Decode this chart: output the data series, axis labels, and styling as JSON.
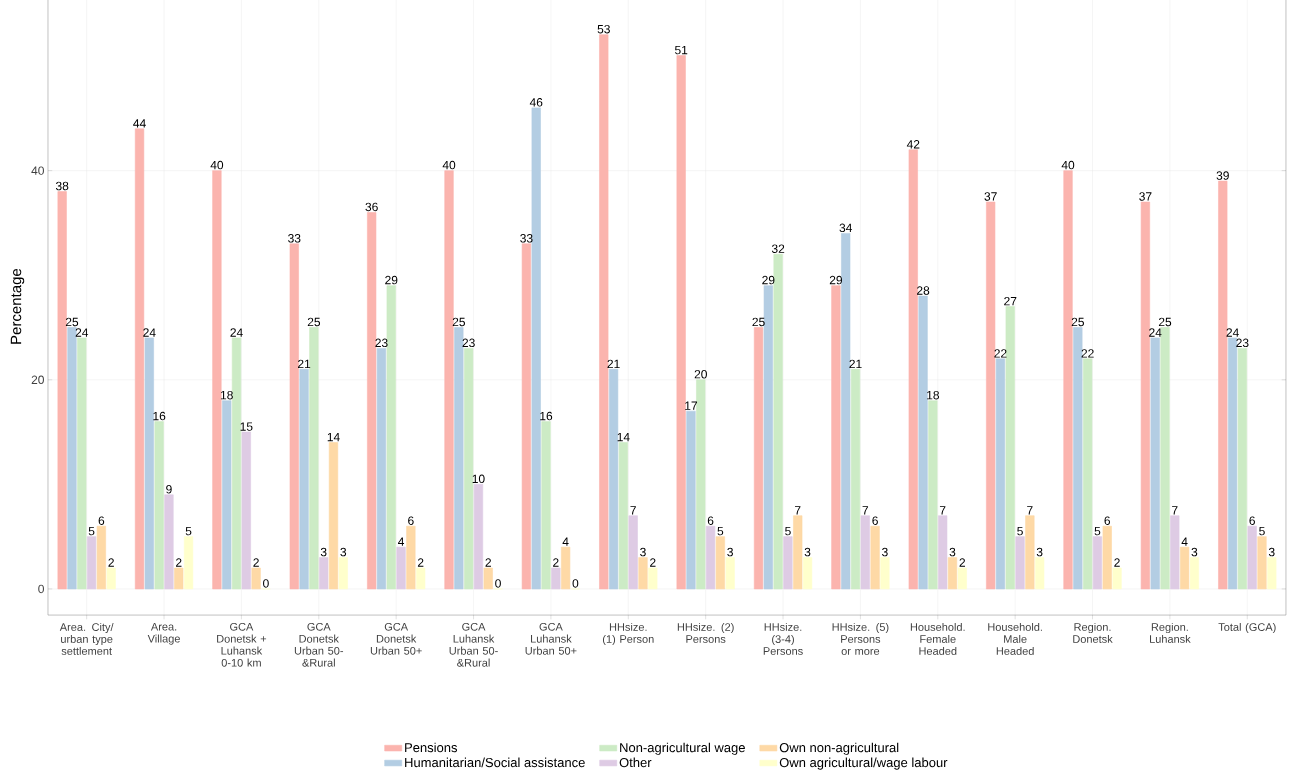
{
  "chart_data": {
    "type": "bar",
    "ylabel": "Percentage",
    "categories": [
      "Area. City/ urban type settlement",
      "Area. Village",
      "GCA Donetsk + Luhansk 0-10 km",
      "GCA Donetsk Urban 50- &Rural",
      "GCA Donetsk Urban 50+",
      "GCA Luhansk Urban 50- &Rural",
      "GCA Luhansk Urban 50+",
      "HHsize. (1) Person",
      "HHsize. (2) Persons",
      "HHsize. (3-4) Persons",
      "HHsize. (5) Persons or more",
      "Household. Female Headed",
      "Household. Male Headed",
      "Region. Donetsk",
      "Region. Luhansk",
      "Total (GCA)"
    ],
    "series": [
      {
        "name": "Pensions",
        "color": "#fbb4ae",
        "values": [
          38,
          44,
          40,
          33,
          36,
          40,
          33,
          53,
          51,
          25,
          29,
          42,
          37,
          40,
          37,
          39
        ]
      },
      {
        "name": "Humanitarian/Social assistance",
        "color": "#b3cde3",
        "values": [
          25,
          24,
          18,
          21,
          23,
          25,
          46,
          21,
          17,
          29,
          34,
          28,
          22,
          25,
          24,
          24
        ]
      },
      {
        "name": "Non-agricultural wage",
        "color": "#ccebc5",
        "values": [
          24,
          16,
          24,
          25,
          29,
          23,
          16,
          14,
          20,
          32,
          21,
          18,
          27,
          22,
          25,
          23
        ]
      },
      {
        "name": "Other",
        "color": "#decbe4",
        "values": [
          5,
          9,
          15,
          3,
          4,
          10,
          2,
          7,
          6,
          5,
          7,
          7,
          5,
          5,
          7,
          6
        ]
      },
      {
        "name": "Own non-agricultural",
        "color": "#fed9a6",
        "values": [
          6,
          2,
          2,
          14,
          6,
          2,
          4,
          3,
          5,
          7,
          6,
          3,
          7,
          6,
          4,
          5
        ]
      },
      {
        "name": "Own agricultural/wage labour",
        "color": "#ffffcc",
        "values": [
          2,
          5,
          0,
          3,
          2,
          0,
          0,
          2,
          3,
          3,
          3,
          2,
          3,
          2,
          3,
          3
        ]
      }
    ],
    "ylim": [
      -2.5,
      56.5
    ],
    "yticks": [
      0,
      20,
      40
    ],
    "grid": true,
    "data_labels": true,
    "legend": "bottom"
  }
}
